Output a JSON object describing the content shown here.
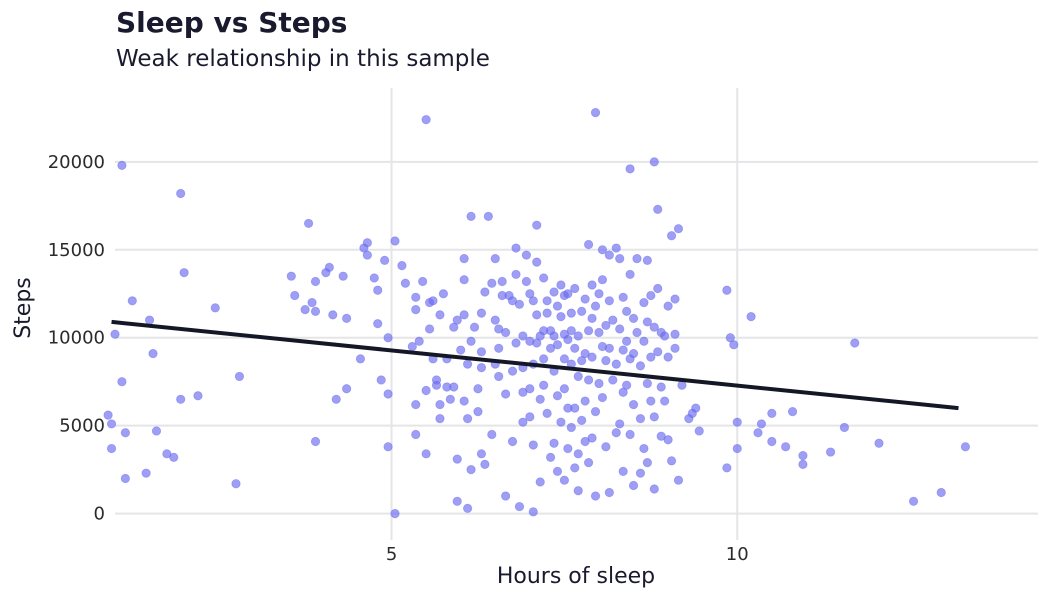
{
  "title": "Sleep vs Steps",
  "subtitle": "Weak relationship in this sample",
  "colors": {
    "points": "#6a6af0",
    "trend": "#141826",
    "grid": "#e5e5e8",
    "text": "#1a1a2e"
  },
  "chart_data": {
    "type": "scatter",
    "title": "Sleep vs Steps",
    "subtitle": "Weak relationship in this sample",
    "xlabel": "Hours of sleep",
    "ylabel": "Steps",
    "xlim": [
      1.0,
      14.35
    ],
    "ylim": [
      -1500,
      24200
    ],
    "x_ticks": [
      5,
      10
    ],
    "y_ticks": [
      0,
      5000,
      10000,
      15000,
      20000
    ],
    "grid": true,
    "legend": "none",
    "trendline": {
      "x": [
        0.95,
        13.2
      ],
      "y": [
        10900,
        6000
      ]
    },
    "points": [
      [
        1.0,
        10200
      ],
      [
        1.1,
        19800
      ],
      [
        0.9,
        5600
      ],
      [
        0.95,
        5100
      ],
      [
        0.95,
        3700
      ],
      [
        1.1,
        7500
      ],
      [
        1.25,
        12100
      ],
      [
        1.15,
        4600
      ],
      [
        1.15,
        2000
      ],
      [
        1.5,
        11000
      ],
      [
        1.55,
        9100
      ],
      [
        1.6,
        4700
      ],
      [
        1.45,
        2300
      ],
      [
        1.75,
        3400
      ],
      [
        1.85,
        3200
      ],
      [
        1.95,
        18200
      ],
      [
        1.95,
        6500
      ],
      [
        2.0,
        13700
      ],
      [
        2.2,
        6700
      ],
      [
        2.45,
        11700
      ],
      [
        2.75,
        1700
      ],
      [
        2.8,
        7800
      ],
      [
        3.55,
        13500
      ],
      [
        3.6,
        12400
      ],
      [
        3.75,
        11600
      ],
      [
        3.8,
        16500
      ],
      [
        3.85,
        12000
      ],
      [
        3.9,
        4100
      ],
      [
        3.9,
        13200
      ],
      [
        3.9,
        11500
      ],
      [
        4.05,
        13700
      ],
      [
        4.1,
        14000
      ],
      [
        4.15,
        11300
      ],
      [
        4.2,
        6500
      ],
      [
        4.3,
        13500
      ],
      [
        4.35,
        11100
      ],
      [
        4.35,
        7100
      ],
      [
        4.55,
        8800
      ],
      [
        4.6,
        15100
      ],
      [
        4.65,
        15400
      ],
      [
        4.65,
        14700
      ],
      [
        4.75,
        13400
      ],
      [
        4.8,
        12700
      ],
      [
        4.8,
        10800
      ],
      [
        4.85,
        7600
      ],
      [
        4.9,
        14400
      ],
      [
        4.95,
        10000
      ],
      [
        4.95,
        3800
      ],
      [
        4.95,
        6800
      ],
      [
        5.05,
        15500
      ],
      [
        5.05,
        0
      ],
      [
        5.15,
        14100
      ],
      [
        5.2,
        13100
      ],
      [
        5.3,
        9500
      ],
      [
        5.35,
        11600
      ],
      [
        5.35,
        12300
      ],
      [
        5.35,
        6200
      ],
      [
        5.35,
        4500
      ],
      [
        5.4,
        9800
      ],
      [
        5.45,
        13200
      ],
      [
        5.5,
        7000
      ],
      [
        5.5,
        3400
      ],
      [
        5.5,
        22400
      ],
      [
        5.55,
        12000
      ],
      [
        5.55,
        10500
      ],
      [
        5.6,
        12100
      ],
      [
        5.6,
        8800
      ],
      [
        5.65,
        7600
      ],
      [
        5.65,
        7300
      ],
      [
        5.7,
        11300
      ],
      [
        5.7,
        6200
      ],
      [
        5.7,
        5400
      ],
      [
        5.75,
        12500
      ],
      [
        5.8,
        8800
      ],
      [
        5.8,
        7200
      ],
      [
        5.85,
        6500
      ],
      [
        5.9,
        10600
      ],
      [
        5.9,
        7200
      ],
      [
        5.95,
        11000
      ],
      [
        5.95,
        3100
      ],
      [
        5.95,
        700
      ],
      [
        6.0,
        9300
      ],
      [
        6.05,
        13300
      ],
      [
        6.05,
        14500
      ],
      [
        6.05,
        11300
      ],
      [
        6.05,
        6400
      ],
      [
        6.1,
        8500
      ],
      [
        6.1,
        5400
      ],
      [
        6.1,
        300
      ],
      [
        6.15,
        16900
      ],
      [
        6.15,
        9800
      ],
      [
        6.15,
        2500
      ],
      [
        6.2,
        10600
      ],
      [
        6.25,
        7100
      ],
      [
        6.25,
        5800
      ],
      [
        6.3,
        9200
      ],
      [
        6.3,
        11400
      ],
      [
        6.3,
        8300
      ],
      [
        6.3,
        3400
      ],
      [
        6.35,
        12600
      ],
      [
        6.35,
        2800
      ],
      [
        6.4,
        16900
      ],
      [
        6.45,
        13100
      ],
      [
        6.45,
        4500
      ],
      [
        6.5,
        14500
      ],
      [
        6.5,
        11000
      ],
      [
        6.5,
        8500
      ],
      [
        6.55,
        10500
      ],
      [
        6.55,
        7800
      ],
      [
        6.55,
        9400
      ],
      [
        6.6,
        13200
      ],
      [
        6.6,
        12400
      ],
      [
        6.65,
        10300
      ],
      [
        6.65,
        6800
      ],
      [
        6.65,
        1000
      ],
      [
        6.7,
        12400
      ],
      [
        6.75,
        12100
      ],
      [
        6.75,
        8100
      ],
      [
        6.75,
        4100
      ],
      [
        6.8,
        15100
      ],
      [
        6.8,
        13600
      ],
      [
        6.8,
        9700
      ],
      [
        6.85,
        11900
      ],
      [
        6.85,
        400
      ],
      [
        6.9,
        10100
      ],
      [
        6.9,
        8300
      ],
      [
        6.9,
        6900
      ],
      [
        6.9,
        5200
      ],
      [
        6.95,
        14700
      ],
      [
        6.95,
        13200
      ],
      [
        7.0,
        12500
      ],
      [
        7.0,
        9800
      ],
      [
        7.0,
        7100
      ],
      [
        7.0,
        5500
      ],
      [
        7.05,
        12100
      ],
      [
        7.05,
        8500
      ],
      [
        7.05,
        3900
      ],
      [
        7.05,
        100
      ],
      [
        7.1,
        16400
      ],
      [
        7.1,
        14300
      ],
      [
        7.1,
        11300
      ],
      [
        7.1,
        9700
      ],
      [
        7.15,
        10100
      ],
      [
        7.15,
        6500
      ],
      [
        7.15,
        1800
      ],
      [
        7.2,
        13400
      ],
      [
        7.2,
        10400
      ],
      [
        7.2,
        8800
      ],
      [
        7.2,
        7300
      ],
      [
        7.25,
        12100
      ],
      [
        7.25,
        11400
      ],
      [
        7.25,
        5700
      ],
      [
        7.3,
        10400
      ],
      [
        7.3,
        9400
      ],
      [
        7.3,
        3200
      ],
      [
        7.35,
        12600
      ],
      [
        7.35,
        10100
      ],
      [
        7.35,
        8100
      ],
      [
        7.35,
        4000
      ],
      [
        7.4,
        11800
      ],
      [
        7.4,
        9600
      ],
      [
        7.4,
        6700
      ],
      [
        7.4,
        2400
      ],
      [
        7.45,
        13000
      ],
      [
        7.45,
        11200
      ],
      [
        7.45,
        5200
      ],
      [
        7.5,
        12400
      ],
      [
        7.5,
        10200
      ],
      [
        7.5,
        8800
      ],
      [
        7.5,
        7100
      ],
      [
        7.5,
        1900
      ],
      [
        7.55,
        12500
      ],
      [
        7.55,
        9900
      ],
      [
        7.55,
        6000
      ],
      [
        7.55,
        3700
      ],
      [
        7.6,
        11400
      ],
      [
        7.6,
        10400
      ],
      [
        7.6,
        8500
      ],
      [
        7.6,
        4900
      ],
      [
        7.65,
        12800
      ],
      [
        7.65,
        9400
      ],
      [
        7.65,
        6000
      ],
      [
        7.65,
        2600
      ],
      [
        7.7,
        10100
      ],
      [
        7.7,
        7800
      ],
      [
        7.7,
        3400
      ],
      [
        7.7,
        1300
      ],
      [
        7.75,
        11500
      ],
      [
        7.75,
        8700
      ],
      [
        7.75,
        5300
      ],
      [
        7.8,
        12200
      ],
      [
        7.8,
        9100
      ],
      [
        7.8,
        6400
      ],
      [
        7.8,
        4100
      ],
      [
        7.85,
        15300
      ],
      [
        7.85,
        10400
      ],
      [
        7.85,
        7600
      ],
      [
        7.85,
        2900
      ],
      [
        7.9,
        13000
      ],
      [
        7.9,
        11100
      ],
      [
        7.9,
        8900
      ],
      [
        7.9,
        4300
      ],
      [
        7.95,
        22800
      ],
      [
        7.95,
        11800
      ],
      [
        7.95,
        5800
      ],
      [
        7.95,
        1000
      ],
      [
        8.0,
        12500
      ],
      [
        8.0,
        10300
      ],
      [
        8.0,
        7400
      ],
      [
        8.05,
        15000
      ],
      [
        8.05,
        13300
      ],
      [
        8.05,
        9500
      ],
      [
        8.05,
        6600
      ],
      [
        8.1,
        10700
      ],
      [
        8.1,
        8700
      ],
      [
        8.1,
        3800
      ],
      [
        8.15,
        14700
      ],
      [
        8.15,
        12100
      ],
      [
        8.15,
        9400
      ],
      [
        8.15,
        1200
      ],
      [
        8.2,
        11000
      ],
      [
        8.2,
        7600
      ],
      [
        8.25,
        15100
      ],
      [
        8.25,
        8500
      ],
      [
        8.25,
        4600
      ],
      [
        8.3,
        14500
      ],
      [
        8.3,
        10500
      ],
      [
        8.3,
        5100
      ],
      [
        8.35,
        12300
      ],
      [
        8.35,
        9300
      ],
      [
        8.35,
        6900
      ],
      [
        8.35,
        2400
      ],
      [
        8.4,
        11500
      ],
      [
        8.4,
        9800
      ],
      [
        8.4,
        7300
      ],
      [
        8.45,
        19600
      ],
      [
        8.45,
        13600
      ],
      [
        8.45,
        8800
      ],
      [
        8.45,
        4500
      ],
      [
        8.5,
        11100
      ],
      [
        8.5,
        9100
      ],
      [
        8.5,
        6200
      ],
      [
        8.5,
        1600
      ],
      [
        8.55,
        14500
      ],
      [
        8.55,
        10300
      ],
      [
        8.6,
        8400
      ],
      [
        8.6,
        5400
      ],
      [
        8.6,
        2300
      ],
      [
        8.65,
        12000
      ],
      [
        8.65,
        9800
      ],
      [
        8.65,
        3700
      ],
      [
        8.7,
        14400
      ],
      [
        8.7,
        10900
      ],
      [
        8.7,
        7400
      ],
      [
        8.7,
        2900
      ],
      [
        8.75,
        12400
      ],
      [
        8.75,
        8900
      ],
      [
        8.75,
        6400
      ],
      [
        8.8,
        20000
      ],
      [
        8.8,
        10600
      ],
      [
        8.8,
        5500
      ],
      [
        8.8,
        1400
      ],
      [
        8.85,
        17300
      ],
      [
        8.85,
        12800
      ],
      [
        8.85,
        9200
      ],
      [
        8.9,
        10300
      ],
      [
        8.9,
        7200
      ],
      [
        8.9,
        4400
      ],
      [
        8.95,
        10100
      ],
      [
        8.95,
        6400
      ],
      [
        9.0,
        11800
      ],
      [
        9.0,
        8900
      ],
      [
        9.0,
        4200
      ],
      [
        9.05,
        15800
      ],
      [
        9.05,
        3000
      ],
      [
        9.1,
        12200
      ],
      [
        9.1,
        10200
      ],
      [
        9.1,
        9400
      ],
      [
        9.15,
        16200
      ],
      [
        9.15,
        1900
      ],
      [
        9.2,
        7300
      ],
      [
        9.3,
        5400
      ],
      [
        9.35,
        5700
      ],
      [
        9.4,
        6000
      ],
      [
        9.45,
        4700
      ],
      [
        9.85,
        12700
      ],
      [
        9.85,
        2600
      ],
      [
        9.9,
        10000
      ],
      [
        9.95,
        9600
      ],
      [
        10.0,
        5200
      ],
      [
        10.0,
        3700
      ],
      [
        10.2,
        11200
      ],
      [
        10.3,
        4600
      ],
      [
        10.35,
        5100
      ],
      [
        10.5,
        5700
      ],
      [
        10.5,
        4100
      ],
      [
        10.7,
        3800
      ],
      [
        10.8,
        5800
      ],
      [
        10.95,
        3300
      ],
      [
        10.95,
        2800
      ],
      [
        11.35,
        3500
      ],
      [
        11.55,
        4900
      ],
      [
        11.7,
        9700
      ],
      [
        12.05,
        4000
      ],
      [
        12.55,
        700
      ],
      [
        12.95,
        1200
      ],
      [
        13.3,
        3800
      ]
    ]
  }
}
